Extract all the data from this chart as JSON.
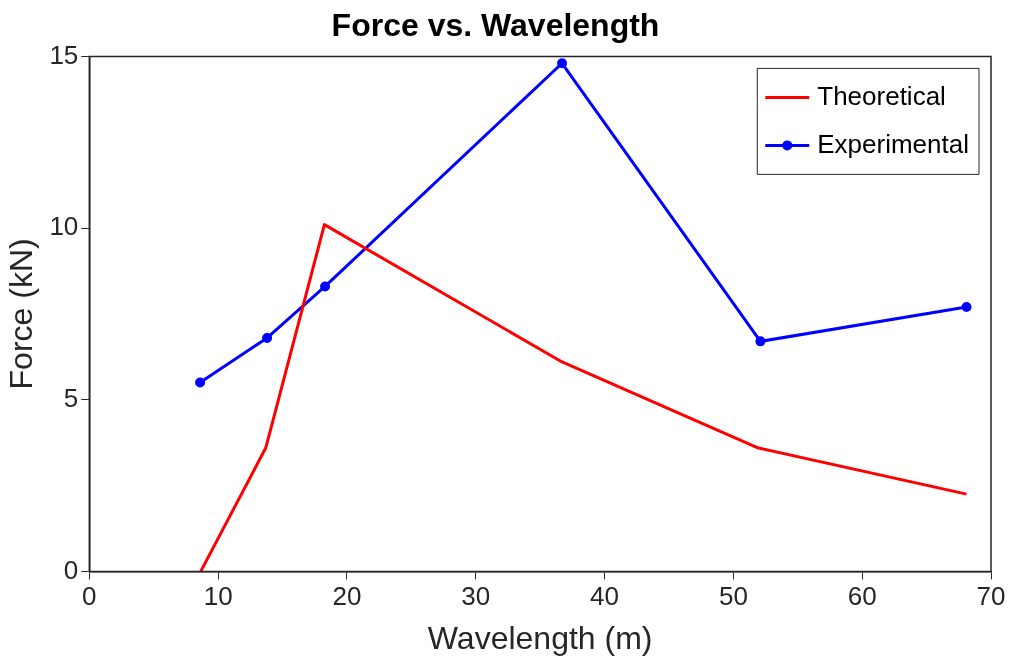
{
  "chart_data": {
    "type": "line",
    "title": "Force vs. Wavelength",
    "xlabel": "Wavelength (m)",
    "ylabel": "Force (kN)",
    "xlim": [
      0,
      70
    ],
    "xticks": [
      0,
      10,
      20,
      30,
      40,
      50,
      60,
      70
    ],
    "ylim": [
      0,
      15
    ],
    "yticks": [
      0,
      5,
      10,
      15
    ],
    "grid": false,
    "legend": "top right",
    "series": [
      {
        "name": "Theoretical",
        "color": "#ff0000",
        "marker": "none",
        "x": [
          8.65,
          13.7,
          18.25,
          36.7,
          51.9,
          68.1
        ],
        "values": [
          0,
          3.6,
          10.1,
          6.1,
          3.6,
          2.25
        ]
      },
      {
        "name": "Experimental",
        "color": "#0000ff",
        "marker": "circle",
        "x": [
          8.6,
          13.8,
          18.3,
          36.7,
          52.1,
          68.1
        ],
        "values": [
          5.5,
          6.8,
          8.3,
          14.8,
          6.7,
          7.7
        ]
      }
    ]
  }
}
